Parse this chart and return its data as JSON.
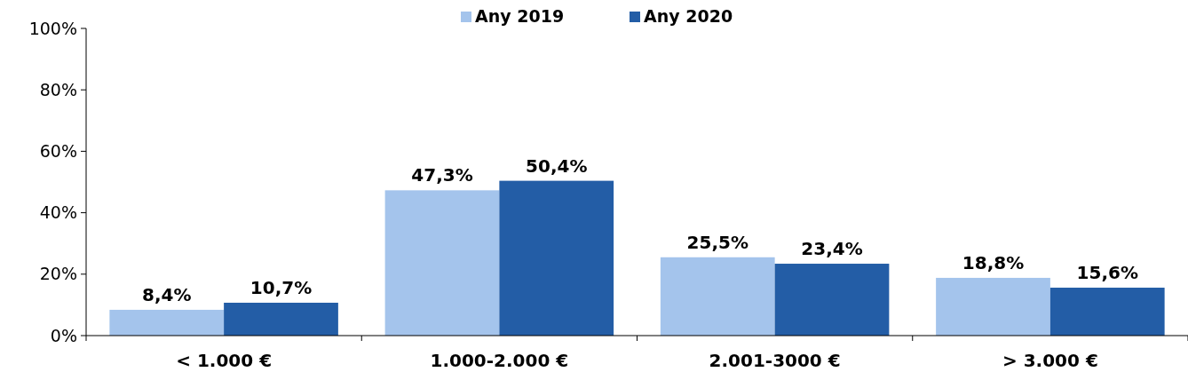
{
  "chart_data": {
    "type": "bar",
    "categories": [
      "< 1.000 €",
      "1.000-2.000 €",
      "2.001-3000 €",
      "> 3.000 €"
    ],
    "series": [
      {
        "name": "Any 2019",
        "color": "#a4c4ec",
        "values": [
          8.4,
          47.3,
          25.5,
          18.8
        ],
        "value_labels": [
          "8,4%",
          "47,3%",
          "25,5%",
          "18,8%"
        ]
      },
      {
        "name": "Any 2020",
        "color": "#235da6",
        "values": [
          10.7,
          50.4,
          23.4,
          15.6
        ],
        "value_labels": [
          "10,7%",
          "50,4%",
          "23,4%",
          "15,6%"
        ]
      }
    ],
    "ylim": [
      0,
      100
    ],
    "yticks": [
      {
        "value": 0,
        "label": "0%"
      },
      {
        "value": 20,
        "label": "20%"
      },
      {
        "value": 40,
        "label": "40%"
      },
      {
        "value": 60,
        "label": "60%"
      },
      {
        "value": 80,
        "label": "80%"
      },
      {
        "value": 100,
        "label": "100%"
      }
    ],
    "grid": false,
    "legend": "top"
  }
}
